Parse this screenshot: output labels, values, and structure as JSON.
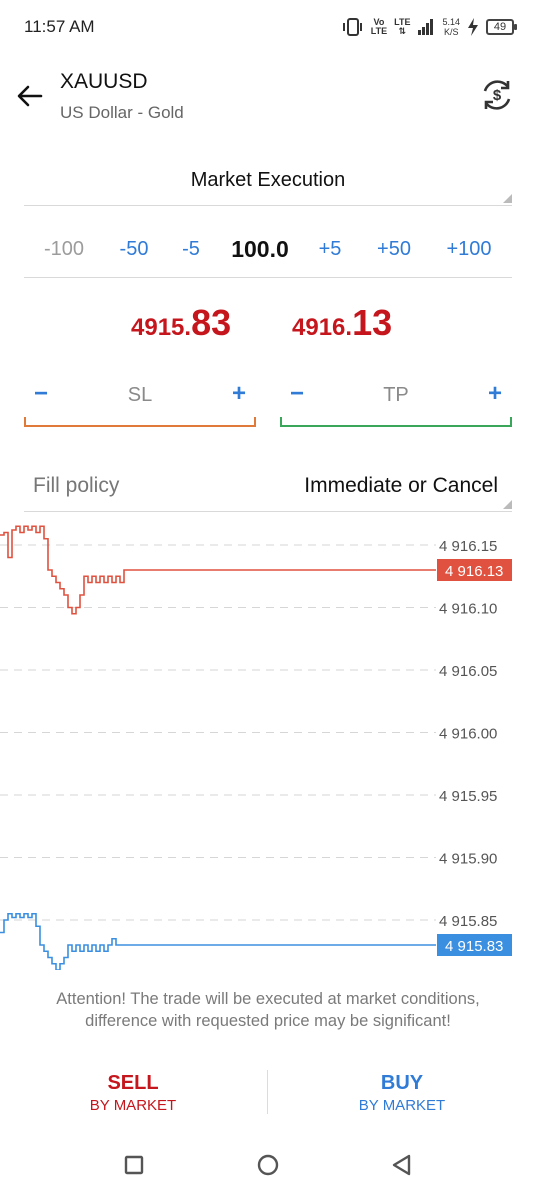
{
  "status_bar": {
    "time": "11:57 AM",
    "volte_top": "Vo",
    "volte_bottom": "LTE",
    "lte": "LTE",
    "speed_value": "5.14",
    "speed_unit": "K/S",
    "battery": "49"
  },
  "header": {
    "symbol": "XAUUSD",
    "description": "US Dollar - Gold"
  },
  "order": {
    "type": "Market Execution",
    "volume": {
      "minus_100": "-100",
      "minus_50": "-50",
      "minus_5": "-5",
      "value": "100.0",
      "plus_5": "+5",
      "plus_50": "+50",
      "plus_100": "+100"
    },
    "bid": {
      "main": "4915.",
      "big": "83"
    },
    "ask": {
      "main": "4916.",
      "big": "13"
    },
    "sl": {
      "label": "SL",
      "minus": "−",
      "plus": "+"
    },
    "tp": {
      "label": "TP",
      "minus": "−",
      "plus": "+"
    },
    "fill_policy": {
      "label": "Fill policy",
      "value": "Immediate or Cancel"
    }
  },
  "chart_data": {
    "type": "line",
    "y_ticks": [
      "4 916.15",
      "4 916.10",
      "4 916.05",
      "4 916.00",
      "4 915.95",
      "4 915.90",
      "4 915.85"
    ],
    "ylim": [
      4915.81,
      4916.17
    ],
    "grid": true,
    "series": [
      {
        "color": "#e0513f",
        "values": [
          4916.158,
          4916.16,
          4916.14,
          4916.162,
          4916.165,
          4916.16,
          4916.165,
          4916.162,
          4916.165,
          4916.16,
          4916.165,
          4916.155,
          4916.13,
          4916.125,
          4916.12,
          4916.115,
          4916.11,
          4916.1,
          4916.095,
          4916.1,
          4916.11,
          4916.125,
          4916.12,
          4916.125,
          4916.12,
          4916.125,
          4916.12,
          4916.125,
          4916.12,
          4916.125,
          4916.12,
          4916.13,
          4916.13,
          4916.13,
          4916.13,
          4916.13,
          4916.13,
          4916.13,
          4916.13,
          4916.13,
          4916.13,
          4916.13,
          4916.13
        ]
      },
      {
        "color": "#3b8fe0",
        "values": [
          4915.84,
          4915.85,
          4915.855,
          4915.852,
          4915.855,
          4915.852,
          4915.855,
          4915.852,
          4915.855,
          4915.845,
          4915.83,
          4915.825,
          4915.82,
          4915.815,
          4915.81,
          4915.815,
          4915.82,
          4915.83,
          4915.825,
          4915.83,
          4915.825,
          4915.83,
          4915.825,
          4915.83,
          4915.825,
          4915.83,
          4915.825,
          4915.83,
          4915.835,
          4915.83,
          4915.83,
          4915.83,
          4915.83,
          4915.83,
          4915.83,
          4915.83,
          4915.83,
          4915.83,
          4915.83,
          4915.83,
          4915.83,
          4915.83,
          4915.83
        ]
      }
    ],
    "markers": [
      {
        "label": "4 916.13",
        "value": 4916.13,
        "color": "#e0513f"
      },
      {
        "label": "4 915.83",
        "value": 4915.83,
        "color": "#3b8fe0"
      }
    ]
  },
  "attention": "Attention! The trade will be executed at market conditions, difference with requested price may be significant!",
  "actions": {
    "sell_main": "SELL",
    "sell_sub": "BY MARKET",
    "buy_main": "BUY",
    "buy_sub": "BY MARKET"
  }
}
